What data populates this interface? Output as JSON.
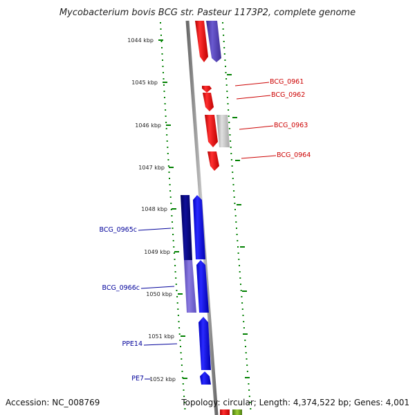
{
  "title": "Mycobacterium bovis BCG str. Pasteur 1173P2, complete genome",
  "footer": {
    "accession": "Accession: NC_008769",
    "summary": "Topology: circular; Length: 4,374,522 bp; Genes: 4,001"
  },
  "ticks": [
    "1044 kbp",
    "1045 kbp",
    "1046 kbp",
    "1047 kbp",
    "1048 kbp",
    "1049 kbp",
    "1050 kbp",
    "1051 kbp",
    "1052 kbp"
  ],
  "genes": [
    {
      "name": "BCG_0961",
      "color": "#cc0000"
    },
    {
      "name": "BCG_0962",
      "color": "#cc0000"
    },
    {
      "name": "BCG_0963",
      "color": "#cc0000"
    },
    {
      "name": "BCG_0964",
      "color": "#cc0000"
    },
    {
      "name": "BCG_0965c",
      "color": "#00009a"
    },
    {
      "name": "BCG_0966c",
      "color": "#00009a"
    },
    {
      "name": "PPE14",
      "color": "#00009a"
    },
    {
      "name": "PE7",
      "color": "#00009a"
    }
  ],
  "colors": {
    "forward_cds": "#ff0000",
    "reverse_cds": "#0000ff",
    "dark_blue_cds": "#000080",
    "light_blue_cds": "#6a5acd",
    "gray_cds": "#bbbbbb",
    "backbone": "#888888",
    "tick_marks": "#008000"
  }
}
